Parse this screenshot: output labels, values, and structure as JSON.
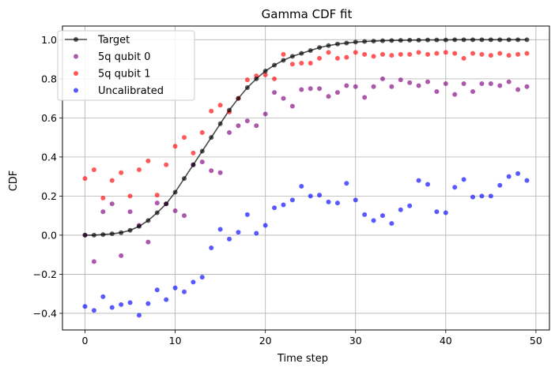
{
  "chart_data": {
    "type": "scatter",
    "title": "Gamma CDF fit",
    "xlabel": "Time step",
    "ylabel": "CDF",
    "xlim": [
      -2.5,
      51.5
    ],
    "ylim": [
      -0.485,
      1.07
    ],
    "xticks": [
      0,
      10,
      20,
      30,
      40,
      50
    ],
    "yticks": [
      -0.4,
      -0.2,
      0.0,
      0.2,
      0.4,
      0.6,
      0.8,
      1.0
    ],
    "xtick_labels": [
      "0",
      "10",
      "20",
      "30",
      "40",
      "50"
    ],
    "ytick_labels": [
      "−0.4",
      "−0.2",
      "0.0",
      "0.2",
      "0.4",
      "0.6",
      "0.8",
      "1.0"
    ],
    "grid": true,
    "legend_position": "top-left",
    "x": [
      0,
      1,
      2,
      3,
      4,
      5,
      6,
      7,
      8,
      9,
      10,
      11,
      12,
      13,
      14,
      15,
      16,
      17,
      18,
      19,
      20,
      21,
      22,
      23,
      24,
      25,
      26,
      27,
      28,
      29,
      30,
      31,
      32,
      33,
      34,
      35,
      36,
      37,
      38,
      39,
      40,
      41,
      42,
      43,
      44,
      45,
      46,
      47,
      48,
      49
    ],
    "series": [
      {
        "name": "Target",
        "style": "line-marker",
        "color": "#000000",
        "values": [
          0.0,
          0.0,
          0.003,
          0.007,
          0.013,
          0.025,
          0.045,
          0.075,
          0.115,
          0.16,
          0.22,
          0.29,
          0.36,
          0.43,
          0.5,
          0.57,
          0.64,
          0.7,
          0.755,
          0.8,
          0.84,
          0.87,
          0.895,
          0.915,
          0.93,
          0.945,
          0.96,
          0.97,
          0.978,
          0.983,
          0.988,
          0.991,
          0.993,
          0.995,
          0.996,
          0.997,
          0.998,
          0.998,
          0.999,
          0.999,
          0.999,
          1.0,
          1.0,
          1.0,
          1.0,
          1.0,
          1.0,
          1.0,
          1.0,
          1.0
        ]
      },
      {
        "name": "5q qubit 0",
        "style": "marker",
        "color": "#800080",
        "values": [
          0.0,
          -0.135,
          0.12,
          0.16,
          -0.105,
          0.12,
          0.05,
          -0.035,
          0.165,
          0.16,
          0.125,
          0.1,
          0.36,
          0.375,
          0.33,
          0.32,
          0.525,
          0.56,
          0.585,
          0.56,
          0.62,
          0.73,
          0.7,
          0.66,
          0.745,
          0.75,
          0.75,
          0.71,
          0.73,
          0.765,
          0.76,
          0.705,
          0.76,
          0.8,
          0.76,
          0.795,
          0.78,
          0.765,
          0.785,
          0.735,
          0.775,
          0.72,
          0.775,
          0.735,
          0.775,
          0.775,
          0.765,
          0.785,
          0.745,
          0.76
        ]
      },
      {
        "name": "5q qubit 1",
        "style": "marker",
        "color": "#ff0000",
        "values": [
          0.29,
          0.335,
          0.19,
          0.28,
          0.32,
          0.2,
          0.335,
          0.38,
          0.205,
          0.36,
          0.455,
          0.5,
          0.42,
          0.525,
          0.635,
          0.665,
          0.63,
          0.7,
          0.795,
          0.815,
          0.82,
          0.8,
          0.925,
          0.875,
          0.88,
          0.88,
          0.905,
          0.935,
          0.905,
          0.91,
          0.935,
          0.925,
          0.915,
          0.925,
          0.92,
          0.925,
          0.925,
          0.935,
          0.925,
          0.93,
          0.935,
          0.93,
          0.905,
          0.93,
          0.925,
          0.92,
          0.93,
          0.92,
          0.925,
          0.93
        ]
      },
      {
        "name": "Uncalibrated",
        "style": "marker",
        "color": "#0000ff",
        "values": [
          -0.365,
          -0.385,
          -0.315,
          -0.37,
          -0.355,
          -0.345,
          -0.41,
          -0.35,
          -0.28,
          -0.33,
          -0.27,
          -0.29,
          -0.24,
          -0.215,
          -0.065,
          0.03,
          -0.02,
          0.015,
          0.105,
          0.01,
          0.05,
          0.14,
          0.155,
          0.18,
          0.25,
          0.2,
          0.205,
          0.17,
          0.165,
          0.265,
          0.18,
          0.105,
          0.075,
          0.1,
          0.06,
          0.13,
          0.15,
          0.28,
          0.26,
          0.12,
          0.115,
          0.245,
          0.285,
          0.195,
          0.2,
          0.2,
          0.255,
          0.3,
          0.315,
          0.28
        ]
      }
    ]
  }
}
